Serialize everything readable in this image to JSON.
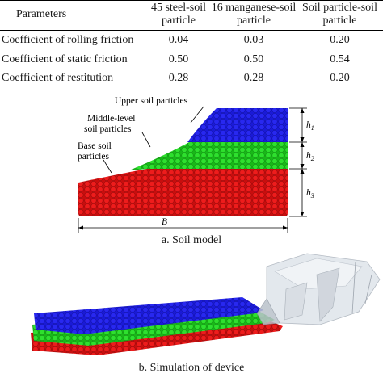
{
  "table": {
    "headers": [
      {
        "line1": "Parameters",
        "line2": ""
      },
      {
        "line1": "45 steel-soil",
        "line2": "particle"
      },
      {
        "line1": "16 manganese-soil",
        "line2": "particle"
      },
      {
        "line1": "Soil particle-soil",
        "line2": "particle"
      }
    ],
    "rows": [
      {
        "label": "Coefficient of rolling friction",
        "values": [
          "0.04",
          "0.03",
          "0.20"
        ]
      },
      {
        "label": "Coefficient of static friction",
        "values": [
          "0.50",
          "0.50",
          "0.54"
        ]
      },
      {
        "label": "Coefficient of restitution",
        "values": [
          "0.28",
          "0.28",
          "0.20"
        ]
      }
    ]
  },
  "figure_a": {
    "labels": {
      "upper": "Upper soil particles",
      "middle1": "Middle-level",
      "middle2": "soil particles",
      "base1": "Base soil",
      "base2": "particles",
      "h1": "h",
      "h1sub": "1",
      "h2": "h",
      "h2sub": "2",
      "h3": "h",
      "h3sub": "3",
      "width": "B"
    },
    "caption": "a. Soil model",
    "colors": {
      "upper": "#1a1ad6",
      "middle": "#22d322",
      "base": "#e01414"
    }
  },
  "figure_b": {
    "caption": "b. Simulation of device"
  }
}
